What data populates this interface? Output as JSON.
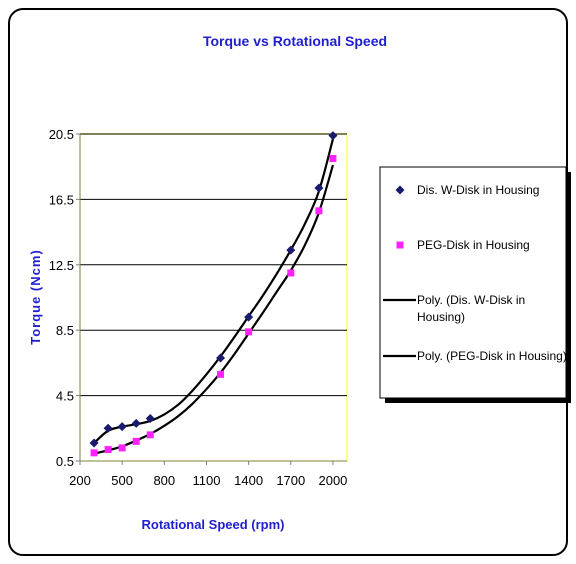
{
  "chart_data": {
    "type": "scatter",
    "title": "Torque vs Rotational Speed",
    "xlabel": "Rotational Speed (rpm)",
    "ylabel": "Torque (Ncm)",
    "xlim": [
      200,
      2100
    ],
    "ylim": [
      0.5,
      20.5
    ],
    "xticks": [
      200,
      500,
      800,
      1100,
      1400,
      1700,
      2000
    ],
    "yticks": [
      0.5,
      4.5,
      8.5,
      12.5,
      16.5,
      20.5
    ],
    "xtick_labels": [
      "200",
      "500",
      "800",
      "1100",
      "1400",
      "1700",
      "2000"
    ],
    "ytick_labels": [
      "0.5",
      "4.5",
      "8.5",
      "12.5",
      "16.5",
      "20.5"
    ],
    "grid": "horizontal",
    "plot_background": "#ffffff",
    "plot_border_color": "#ffff66",
    "series": [
      {
        "name": "Dis. W-Disk in Housing",
        "marker": "diamond",
        "color": "#1a1a6e",
        "x": [
          300,
          400,
          500,
          600,
          700,
          1200,
          1400,
          1700,
          1900,
          2000
        ],
        "y": [
          1.6,
          2.5,
          2.6,
          2.8,
          3.1,
          6.8,
          9.3,
          13.4,
          17.2,
          20.4
        ]
      },
      {
        "name": "PEG-Disk in Housing",
        "marker": "square",
        "color": "#ff22ff",
        "x": [
          300,
          400,
          500,
          600,
          700,
          1200,
          1400,
          1700,
          1900,
          2000
        ],
        "y": [
          1.0,
          1.2,
          1.3,
          1.7,
          2.1,
          5.8,
          8.4,
          12.0,
          15.8,
          19.0
        ]
      }
    ],
    "trendlines": [
      {
        "name": "Poly. (Dis. W-Disk in Housing)",
        "color": "#000000",
        "x": [
          300,
          400,
          500,
          600,
          700,
          800,
          900,
          1000,
          1100,
          1200,
          1300,
          1400,
          1500,
          1600,
          1700,
          1800,
          1900,
          2000
        ],
        "y": [
          1.6,
          2.35,
          2.6,
          2.75,
          2.95,
          3.35,
          3.95,
          4.8,
          5.8,
          6.9,
          8.1,
          9.35,
          10.6,
          11.95,
          13.4,
          15.0,
          17.0,
          20.2
        ]
      },
      {
        "name": "Poly. (PEG-Disk in Housing)",
        "color": "#000000",
        "x": [
          300,
          400,
          500,
          600,
          700,
          800,
          900,
          1000,
          1100,
          1200,
          1300,
          1400,
          1500,
          1600,
          1700,
          1800,
          1900,
          2000
        ],
        "y": [
          0.95,
          1.15,
          1.4,
          1.75,
          2.15,
          2.65,
          3.25,
          4.0,
          4.9,
          5.9,
          7.05,
          8.3,
          9.55,
          10.85,
          12.15,
          13.7,
          15.7,
          18.6
        ]
      }
    ],
    "legend": {
      "position": "right",
      "entries": [
        {
          "label_lines": [
            "Dis. W-Disk in Housing"
          ],
          "kind": "marker",
          "series": 0
        },
        {
          "label_lines": [
            "PEG-Disk in Housing"
          ],
          "kind": "marker",
          "series": 1
        },
        {
          "label_lines": [
            "Poly. (Dis. W-Disk in",
            "Housing)"
          ],
          "kind": "line",
          "series": 0
        },
        {
          "label_lines": [
            "Poly. (PEG-Disk in Housing)"
          ],
          "kind": "line",
          "series": 1
        }
      ]
    }
  }
}
